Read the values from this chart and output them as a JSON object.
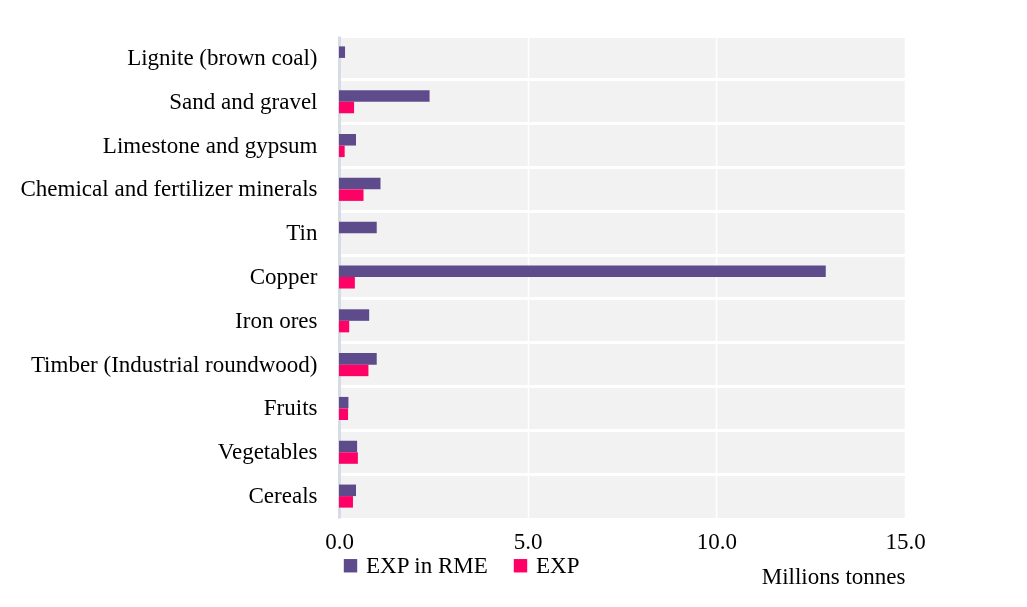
{
  "chart_data": {
    "type": "bar",
    "orientation": "horizontal",
    "xlabel": "Millions tonnes",
    "categories": [
      "Lignite (brown coal)",
      "Sand and gravel",
      "Limestone and gypsum",
      "Chemical and fertilizer minerals",
      "Tin",
      "Copper",
      "Iron ores",
      "Timber (Industrial roundwood)",
      "Fruits",
      "Vegetables",
      "Cereals"
    ],
    "series": [
      {
        "name": "EXP in RME",
        "color": "#5e4b8b",
        "values": [
          0.16,
          2.4,
          0.45,
          1.1,
          1.0,
          12.9,
          0.8,
          1.0,
          0.25,
          0.48,
          0.45
        ]
      },
      {
        "name": "EXP",
        "color": "#ff0066",
        "values": [
          null,
          0.4,
          0.15,
          0.65,
          null,
          0.42,
          0.27,
          0.78,
          0.24,
          0.5,
          0.37
        ]
      }
    ],
    "xlim": [
      0,
      15
    ],
    "xticks": [
      {
        "value": 0,
        "label": "0.0"
      },
      {
        "value": 5,
        "label": "5.0"
      },
      {
        "value": 10,
        "label": "10.0"
      },
      {
        "value": 15,
        "label": "15.0"
      }
    ],
    "grid": true,
    "legend": "bottom"
  }
}
